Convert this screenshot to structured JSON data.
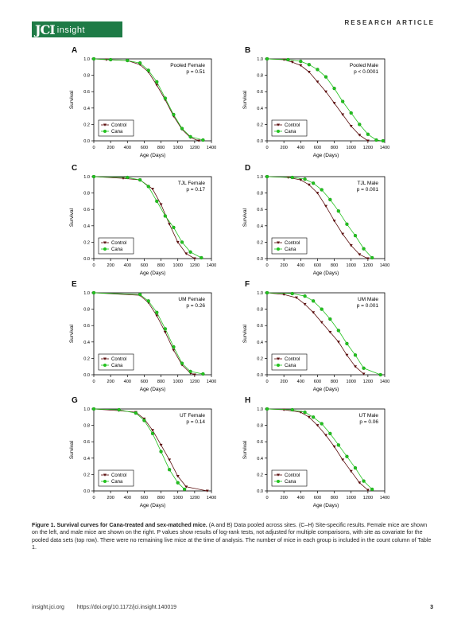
{
  "header": {
    "logo_jci": "JCI",
    "logo_insight": "insight",
    "article_type": "RESEARCH ARTICLE"
  },
  "figure": {
    "panels": [
      {
        "id": "A",
        "title": "Pooled Female",
        "p": "p = 0.51",
        "xmax": 1400,
        "control": [
          [
            0,
            1
          ],
          [
            150,
            0.99
          ],
          [
            400,
            0.98
          ],
          [
            550,
            0.93
          ],
          [
            650,
            0.84
          ],
          [
            750,
            0.68
          ],
          [
            850,
            0.5
          ],
          [
            950,
            0.3
          ],
          [
            1050,
            0.14
          ],
          [
            1150,
            0.04
          ],
          [
            1250,
            0
          ]
        ],
        "cana": [
          [
            0,
            1
          ],
          [
            200,
            0.99
          ],
          [
            400,
            0.98
          ],
          [
            550,
            0.95
          ],
          [
            650,
            0.86
          ],
          [
            750,
            0.72
          ],
          [
            850,
            0.52
          ],
          [
            950,
            0.32
          ],
          [
            1050,
            0.15
          ],
          [
            1150,
            0.05
          ],
          [
            1300,
            0.01
          ]
        ]
      },
      {
        "id": "B",
        "title": "Pooled Male",
        "p": "p < 0.0001",
        "xmax": 1400,
        "control": [
          [
            0,
            1
          ],
          [
            200,
            0.99
          ],
          [
            300,
            0.96
          ],
          [
            400,
            0.92
          ],
          [
            500,
            0.84
          ],
          [
            600,
            0.72
          ],
          [
            700,
            0.6
          ],
          [
            800,
            0.46
          ],
          [
            900,
            0.32
          ],
          [
            1000,
            0.18
          ],
          [
            1100,
            0.07
          ],
          [
            1200,
            0
          ]
        ],
        "cana": [
          [
            0,
            1
          ],
          [
            250,
            0.99
          ],
          [
            400,
            0.97
          ],
          [
            500,
            0.93
          ],
          [
            600,
            0.87
          ],
          [
            700,
            0.78
          ],
          [
            800,
            0.64
          ],
          [
            900,
            0.48
          ],
          [
            1000,
            0.34
          ],
          [
            1100,
            0.2
          ],
          [
            1200,
            0.08
          ],
          [
            1300,
            0.01
          ],
          [
            1380,
            0
          ]
        ]
      },
      {
        "id": "C",
        "title": "TJL Female",
        "p": "p = 0.17",
        "xmax": 1400,
        "control": [
          [
            0,
            1
          ],
          [
            350,
            0.98
          ],
          [
            550,
            0.96
          ],
          [
            700,
            0.85
          ],
          [
            800,
            0.66
          ],
          [
            900,
            0.42
          ],
          [
            1000,
            0.2
          ],
          [
            1100,
            0.06
          ],
          [
            1200,
            0
          ]
        ],
        "cana": [
          [
            0,
            1
          ],
          [
            400,
            0.99
          ],
          [
            550,
            0.96
          ],
          [
            650,
            0.88
          ],
          [
            750,
            0.7
          ],
          [
            850,
            0.52
          ],
          [
            950,
            0.38
          ],
          [
            1050,
            0.2
          ],
          [
            1150,
            0.08
          ],
          [
            1280,
            0.01
          ]
        ]
      },
      {
        "id": "D",
        "title": "TJL Male",
        "p": "p = 0.001",
        "xmax": 1400,
        "control": [
          [
            0,
            1
          ],
          [
            250,
            0.99
          ],
          [
            400,
            0.96
          ],
          [
            500,
            0.9
          ],
          [
            600,
            0.8
          ],
          [
            700,
            0.64
          ],
          [
            800,
            0.46
          ],
          [
            900,
            0.3
          ],
          [
            1000,
            0.16
          ],
          [
            1100,
            0.05
          ],
          [
            1200,
            0
          ]
        ],
        "cana": [
          [
            0,
            1
          ],
          [
            300,
            0.99
          ],
          [
            450,
            0.97
          ],
          [
            550,
            0.92
          ],
          [
            650,
            0.84
          ],
          [
            750,
            0.72
          ],
          [
            850,
            0.58
          ],
          [
            950,
            0.42
          ],
          [
            1050,
            0.28
          ],
          [
            1150,
            0.12
          ],
          [
            1250,
            0.01
          ]
        ]
      },
      {
        "id": "E",
        "title": "UM Female",
        "p": "p = 0.26",
        "xmax": 1400,
        "control": [
          [
            0,
            1
          ],
          [
            550,
            0.97
          ],
          [
            650,
            0.88
          ],
          [
            750,
            0.72
          ],
          [
            850,
            0.52
          ],
          [
            950,
            0.3
          ],
          [
            1050,
            0.12
          ],
          [
            1150,
            0.02
          ],
          [
            1200,
            0
          ]
        ],
        "cana": [
          [
            0,
            1
          ],
          [
            550,
            0.98
          ],
          [
            650,
            0.9
          ],
          [
            750,
            0.76
          ],
          [
            850,
            0.56
          ],
          [
            950,
            0.34
          ],
          [
            1050,
            0.14
          ],
          [
            1150,
            0.04
          ],
          [
            1300,
            0.01
          ]
        ]
      },
      {
        "id": "F",
        "title": "UM Male",
        "p": "p = 0.001",
        "xmax": 1400,
        "control": [
          [
            0,
            1
          ],
          [
            200,
            0.98
          ],
          [
            350,
            0.94
          ],
          [
            450,
            0.86
          ],
          [
            550,
            0.76
          ],
          [
            650,
            0.64
          ],
          [
            750,
            0.52
          ],
          [
            850,
            0.4
          ],
          [
            950,
            0.24
          ],
          [
            1050,
            0.1
          ],
          [
            1150,
            0.01
          ]
        ],
        "cana": [
          [
            0,
            1
          ],
          [
            300,
            0.99
          ],
          [
            450,
            0.96
          ],
          [
            550,
            0.9
          ],
          [
            650,
            0.8
          ],
          [
            750,
            0.68
          ],
          [
            850,
            0.54
          ],
          [
            950,
            0.38
          ],
          [
            1050,
            0.24
          ],
          [
            1150,
            0.08
          ],
          [
            1350,
            0
          ]
        ]
      },
      {
        "id": "G",
        "title": "UT Female",
        "p": "p = 0.14",
        "xmax": 1400,
        "control": [
          [
            0,
            1
          ],
          [
            300,
            0.98
          ],
          [
            500,
            0.96
          ],
          [
            600,
            0.88
          ],
          [
            700,
            0.74
          ],
          [
            800,
            0.56
          ],
          [
            900,
            0.38
          ],
          [
            1000,
            0.18
          ],
          [
            1100,
            0.05
          ],
          [
            1350,
            0
          ]
        ],
        "cana": [
          [
            0,
            1
          ],
          [
            300,
            0.99
          ],
          [
            500,
            0.95
          ],
          [
            600,
            0.86
          ],
          [
            700,
            0.7
          ],
          [
            800,
            0.48
          ],
          [
            900,
            0.26
          ],
          [
            1000,
            0.1
          ],
          [
            1080,
            0.02
          ]
        ]
      },
      {
        "id": "H",
        "title": "UT Male",
        "p": "p = 0.06",
        "xmax": 1400,
        "control": [
          [
            0,
            1
          ],
          [
            200,
            0.99
          ],
          [
            400,
            0.96
          ],
          [
            500,
            0.9
          ],
          [
            600,
            0.8
          ],
          [
            700,
            0.68
          ],
          [
            800,
            0.54
          ],
          [
            900,
            0.38
          ],
          [
            1000,
            0.24
          ],
          [
            1100,
            0.1
          ],
          [
            1200,
            0.01
          ]
        ],
        "cana": [
          [
            0,
            1
          ],
          [
            300,
            0.99
          ],
          [
            450,
            0.96
          ],
          [
            550,
            0.9
          ],
          [
            650,
            0.82
          ],
          [
            750,
            0.7
          ],
          [
            850,
            0.56
          ],
          [
            950,
            0.42
          ],
          [
            1050,
            0.28
          ],
          [
            1150,
            0.12
          ],
          [
            1250,
            0.02
          ]
        ]
      }
    ],
    "yticks": [
      "0.0",
      "0.2",
      "0.4",
      "0.6",
      "0.8",
      "1.0"
    ],
    "xticks": [
      "0",
      "200",
      "400",
      "600",
      "800",
      "1000",
      "1200",
      "1400"
    ],
    "xlabel": "Age (Days)",
    "ylabel": "Survival",
    "legend_control": "Control",
    "legend_cana": "Cana",
    "color_control": "#5a0d0d",
    "color_cana": "#22c21e"
  },
  "caption": {
    "lead": "Figure 1. Survival curves for Cana-treated and sex-matched mice.",
    "body": " (A and B) Data pooled across sites. (C–H) Site-specific results. Female mice are shown on the left, and male mice are shown on the right. P values show results of log-rank tests, not adjusted for multiple comparisons, with site as covariate for the pooled data sets (top row). There were no remaining live mice at the time of analysis. The number of mice in each group is included in the count column of Table 1."
  },
  "footer": {
    "site": "insight.jci.org",
    "doi": "https://doi.org/10.1172/jci.insight.140019",
    "page": "3"
  }
}
